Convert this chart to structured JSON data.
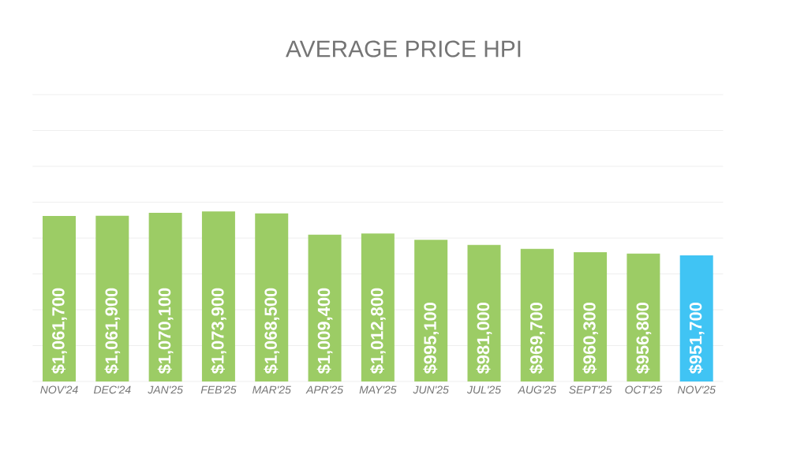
{
  "chart_data": {
    "type": "bar",
    "title": "AVERAGE PRICE HPI",
    "categories": [
      "NOV'24",
      "DEC'24",
      "JAN'25",
      "FEB'25",
      "MAR'25",
      "APR'25",
      "MAY'25",
      "JUN'25",
      "JUL'25",
      "AUG'25",
      "SEPT'25",
      "OCT'25",
      "NOV'25"
    ],
    "values": [
      1061700,
      1061900,
      1070100,
      1073900,
      1068500,
      1009400,
      1012800,
      995100,
      981000,
      969700,
      960300,
      956800,
      951700
    ],
    "value_labels": [
      "$1,061,700",
      "$1,061,900",
      "$1,070,100",
      "$1,073,900",
      "$1,068,500",
      "$1,009,400",
      "$1,012,800",
      "$995,100",
      "$981,000",
      "$969,700",
      "$960,300",
      "$956,800",
      "$951,700"
    ],
    "colors": [
      "#9ccc65",
      "#9ccc65",
      "#9ccc65",
      "#9ccc65",
      "#9ccc65",
      "#9ccc65",
      "#9ccc65",
      "#9ccc65",
      "#9ccc65",
      "#9ccc65",
      "#9ccc65",
      "#9ccc65",
      "#40c4f4"
    ],
    "ylim": [
      600000,
      1400000
    ],
    "yticks": [
      {
        "value": 600000,
        "label": null
      },
      {
        "value": 700000,
        "label": null
      },
      {
        "value": 800000,
        "label": null
      },
      {
        "value": 900000,
        "label": null
      },
      {
        "value": 1000000,
        "label": null
      },
      {
        "value": 1100000,
        "label": null
      },
      {
        "value": 1200000,
        "label": null
      },
      {
        "value": 1300000,
        "label": null
      },
      {
        "value": 1400000,
        "label": null
      }
    ],
    "grid": "y"
  }
}
